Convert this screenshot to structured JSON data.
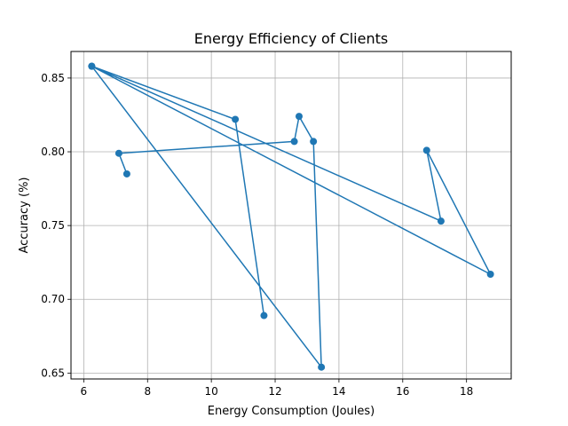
{
  "chart_data": {
    "type": "line",
    "title": "Energy Efficiency of Clients",
    "xlabel": "Energy Consumption (Joules)",
    "ylabel": "Accuracy (%)",
    "xlim": [
      5.6,
      19.4
    ],
    "ylim": [
      0.646,
      0.868
    ],
    "x_ticks": [
      6,
      8,
      10,
      12,
      14,
      16,
      18
    ],
    "y_ticks": [
      0.65,
      0.7,
      0.75,
      0.8,
      0.85
    ],
    "x_tick_labels": [
      "6",
      "8",
      "10",
      "12",
      "14",
      "16",
      "18"
    ],
    "y_tick_labels": [
      "0.65",
      "0.70",
      "0.75",
      "0.80",
      "0.85"
    ],
    "grid": true,
    "series": [
      {
        "color": "#1f77b4",
        "marker": "circle",
        "points": [
          {
            "x": 7.35,
            "y": 0.785
          },
          {
            "x": 7.1,
            "y": 0.799
          },
          {
            "x": 12.6,
            "y": 0.807
          },
          {
            "x": 12.75,
            "y": 0.824
          },
          {
            "x": 13.2,
            "y": 0.807
          },
          {
            "x": 13.45,
            "y": 0.654
          },
          {
            "x": 6.25,
            "y": 0.858
          },
          {
            "x": 18.75,
            "y": 0.717
          },
          {
            "x": 16.75,
            "y": 0.801
          },
          {
            "x": 17.2,
            "y": 0.753
          },
          {
            "x": 6.25,
            "y": 0.858
          },
          {
            "x": 10.75,
            "y": 0.822
          },
          {
            "x": 11.65,
            "y": 0.689
          }
        ]
      }
    ]
  }
}
